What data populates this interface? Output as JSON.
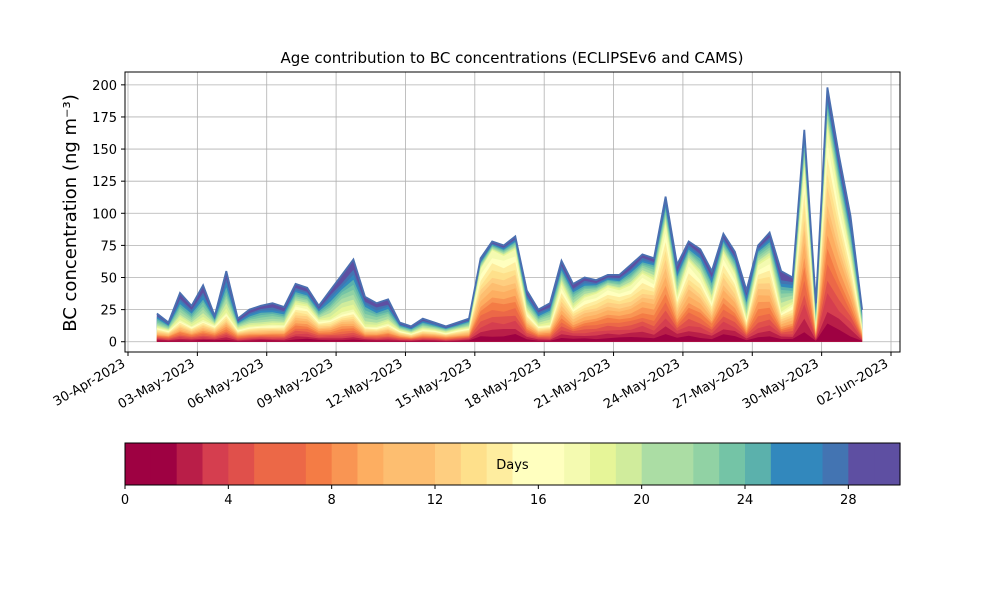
{
  "chart_data": {
    "type": "area",
    "title": "Age contribution to BC concentrations (ECLIPSEv6 and CAMS)",
    "ylabel": "BC concentration (ng m⁻³)",
    "xlabel": "",
    "ylim": [
      -8,
      210
    ],
    "xlim": [
      "2023-04-30",
      "2023-06-02"
    ],
    "grid": true,
    "yticks": [
      0,
      25,
      50,
      75,
      100,
      125,
      150,
      175,
      200
    ],
    "xticks": [
      "30-Apr-2023",
      "03-May-2023",
      "06-May-2023",
      "09-May-2023",
      "12-May-2023",
      "15-May-2023",
      "18-May-2023",
      "21-May-2023",
      "24-May-2023",
      "27-May-2023",
      "30-May-2023",
      "02-Jun-2023"
    ],
    "age_bands_days": 30,
    "x": [
      "2023-05-01 06:00",
      "2023-05-01 18:00",
      "2023-05-02 06:00",
      "2023-05-02 18:00",
      "2023-05-03 06:00",
      "2023-05-03 18:00",
      "2023-05-04 06:00",
      "2023-05-04 18:00",
      "2023-05-05 06:00",
      "2023-05-05 18:00",
      "2023-05-06 06:00",
      "2023-05-06 18:00",
      "2023-05-07 06:00",
      "2023-05-07 18:00",
      "2023-05-08 06:00",
      "2023-05-08 18:00",
      "2023-05-09 06:00",
      "2023-05-09 18:00",
      "2023-05-10 06:00",
      "2023-05-10 18:00",
      "2023-05-11 06:00",
      "2023-05-11 18:00",
      "2023-05-12 06:00",
      "2023-05-12 18:00",
      "2023-05-13 06:00",
      "2023-05-13 18:00",
      "2023-05-14 06:00",
      "2023-05-14 18:00",
      "2023-05-15 06:00",
      "2023-05-15 18:00",
      "2023-05-16 06:00",
      "2023-05-16 18:00",
      "2023-05-17 06:00",
      "2023-05-17 18:00",
      "2023-05-18 06:00",
      "2023-05-18 18:00",
      "2023-05-19 06:00",
      "2023-05-19 18:00",
      "2023-05-20 06:00",
      "2023-05-20 18:00",
      "2023-05-21 06:00",
      "2023-05-21 18:00",
      "2023-05-22 06:00",
      "2023-05-22 18:00",
      "2023-05-23 06:00",
      "2023-05-23 18:00",
      "2023-05-24 06:00",
      "2023-05-24 18:00",
      "2023-05-25 06:00",
      "2023-05-25 18:00",
      "2023-05-26 06:00",
      "2023-05-26 18:00",
      "2023-05-27 06:00",
      "2023-05-27 18:00",
      "2023-05-28 06:00",
      "2023-05-28 18:00",
      "2023-05-29 06:00",
      "2023-05-29 18:00",
      "2023-05-30 06:00",
      "2023-05-30 18:00",
      "2023-05-31 06:00",
      "2023-05-31 18:00"
    ],
    "total": [
      22,
      15,
      38,
      28,
      44,
      20,
      55,
      18,
      25,
      28,
      30,
      27,
      45,
      42,
      28,
      40,
      52,
      64,
      35,
      30,
      33,
      15,
      12,
      18,
      15,
      12,
      15,
      18,
      65,
      78,
      75,
      82,
      40,
      25,
      30,
      63,
      45,
      50,
      48,
      52,
      52,
      60,
      68,
      65,
      113,
      60,
      78,
      72,
      55,
      84,
      70,
      40,
      75,
      85,
      55,
      50,
      165,
      30,
      198,
      145,
      98,
      25
    ],
    "young_fraction": [
      0.45,
      0.55,
      0.42,
      0.4,
      0.35,
      0.6,
      0.38,
      0.5,
      0.45,
      0.4,
      0.4,
      0.45,
      0.62,
      0.62,
      0.55,
      0.4,
      0.42,
      0.38,
      0.3,
      0.35,
      0.4,
      0.55,
      0.5,
      0.5,
      0.55,
      0.55,
      0.6,
      0.55,
      0.85,
      0.9,
      0.88,
      0.86,
      0.55,
      0.45,
      0.42,
      0.7,
      0.55,
      0.65,
      0.75,
      0.8,
      0.75,
      0.7,
      0.75,
      0.72,
      0.8,
      0.55,
      0.78,
      0.7,
      0.55,
      0.8,
      0.72,
      0.4,
      0.78,
      0.75,
      0.4,
      0.55,
      0.8,
      0.3,
      0.82,
      0.75,
      0.65,
      0.4
    ],
    "colorbar": {
      "label": "Days",
      "min": 0,
      "max": 30,
      "ticks": [
        0,
        4,
        8,
        12,
        16,
        20,
        24,
        28
      ],
      "colors": [
        "#9e0142",
        "#b91e48",
        "#d53e4f",
        "#e0504b",
        "#ec6847",
        "#f47c45",
        "#f99553",
        "#fdae61",
        "#fdbe70",
        "#fece80",
        "#fee08b",
        "#feed9f",
        "#ffffbf",
        "#f4fab0",
        "#e6f598",
        "#d0ec9c",
        "#abdda4",
        "#91d2a4",
        "#74c4a6",
        "#5bb1ac",
        "#3288bd",
        "#4374b2",
        "#5e4fa2",
        "#5e4fa2"
      ],
      "colormap": "Spectral"
    }
  }
}
